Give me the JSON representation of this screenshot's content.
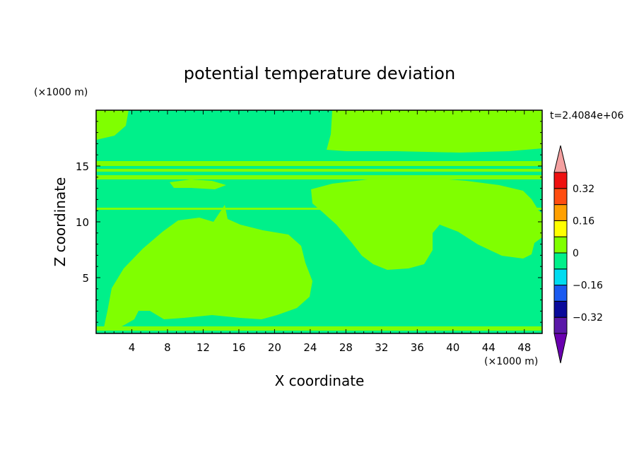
{
  "chart_data": {
    "type": "heatmap",
    "title": "potential temperature deviation",
    "xlabel": "X coordinate",
    "ylabel": "Z coordinate",
    "x_unit": "(×1000 m)",
    "y_unit": "(×1000 m)",
    "time_label": "t=2.4084e+06",
    "xlim": [
      0,
      50
    ],
    "ylim": [
      0,
      20
    ],
    "x_ticks": [
      4,
      8,
      12,
      16,
      20,
      24,
      28,
      32,
      36,
      40,
      44,
      48
    ],
    "y_ticks": [
      5,
      10,
      15
    ],
    "grid": false,
    "colorbar": {
      "levels": [
        -0.4,
        -0.32,
        -0.24,
        -0.16,
        -0.08,
        0,
        0.08,
        0.16,
        0.24,
        0.32,
        0.4
      ],
      "colors": [
        "#5a18a8",
        "#0a0a9a",
        "#1a5af0",
        "#00dcf0",
        "#00f08a",
        "#80ff00",
        "#ffff00",
        "#ffa000",
        "#ff4d10",
        "#ee1010"
      ],
      "under_color": "#6a00b0",
      "over_color": "#f4a0a0",
      "tick_labels": [
        "0.32",
        "0.16",
        "0",
        "-0.16",
        "-0.32"
      ]
    },
    "field": {
      "background_level_color": "#00f08a",
      "positive_level_color": "#80ff00",
      "description_levels": [
        "0 to -0.08 dominant",
        "0 to 0.08 regions"
      ]
    }
  }
}
